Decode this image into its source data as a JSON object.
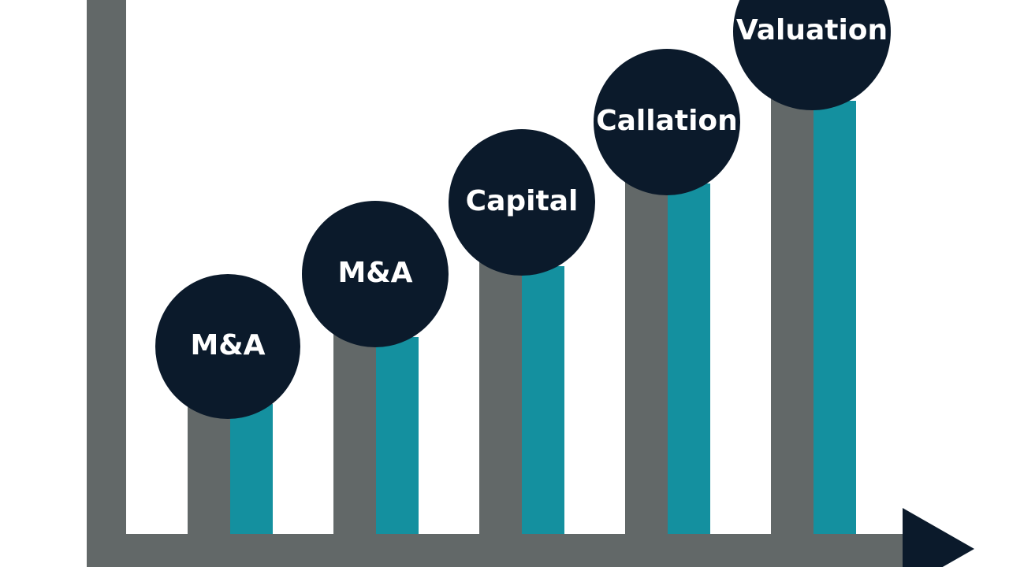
{
  "nodes": [
    {
      "label": "M&A"
    },
    {
      "label": "M&A"
    },
    {
      "label": "Capital"
    },
    {
      "label": "Callation"
    },
    {
      "label": "Valuation"
    }
  ]
}
